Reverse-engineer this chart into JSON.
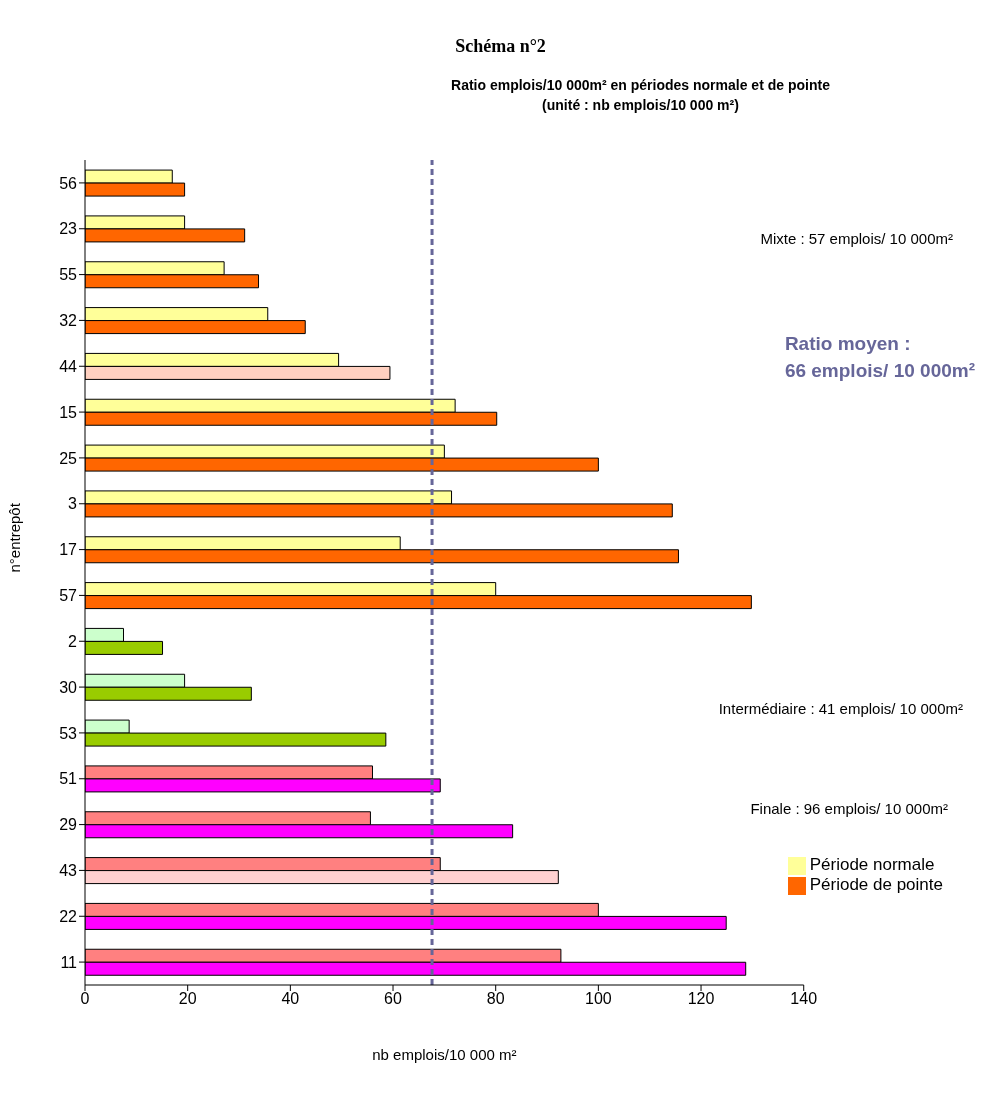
{
  "chart_data": {
    "type": "bar",
    "orientation": "horizontal",
    "title": "Schéma n°2",
    "subtitle": "Ratio emplois/10 000m² en périodes normale et de pointe\n(unité : nb emplois/10 000 m²)",
    "xlabel": "nb emplois/10 000 m²",
    "ylabel": "n°entrepôt",
    "categories": [
      "56",
      "23",
      "55",
      "32",
      "44",
      "15",
      "25",
      "3",
      "17",
      "57",
      "2",
      "30",
      "53",
      "51",
      "29",
      "43",
      "22",
      "11"
    ],
    "series": [
      {
        "name": "Période normale",
        "color": "#ffff99",
        "colors": [
          "#ffff99",
          "#ffff99",
          "#ffff99",
          "#ffff99",
          "#ffff99",
          "#ffff99",
          "#ffff99",
          "#ffff99",
          "#ffff99",
          "#ffff99",
          "#ccffcc",
          "#ccffcc",
          "#ccffcc",
          "#ff8080",
          "#ff8080",
          "#ff8080",
          "#ff8080",
          "#ff8080"
        ],
        "values": [
          17,
          19.4,
          27.1,
          35.6,
          49.4,
          72.1,
          70,
          71.4,
          61.4,
          80,
          7.5,
          19.4,
          8.6,
          56,
          55.6,
          69.2,
          100,
          92.7
        ]
      },
      {
        "name": "Période de pointe",
        "color": "#ff6600",
        "colors": [
          "#ff6600",
          "#ff6600",
          "#ff6600",
          "#ff6600",
          "#ffd0c0",
          "#ff6600",
          "#ff6600",
          "#ff6600",
          "#ff6600",
          "#ff6600",
          "#99cc00",
          "#99cc00",
          "#99cc00",
          "#ff00ff",
          "#ff00ff",
          "#ffd0d0",
          "#ff00ff",
          "#ff00ff"
        ],
        "values": [
          19.4,
          31.1,
          33.8,
          42.9,
          59.4,
          80.2,
          100,
          114.4,
          115.6,
          129.8,
          15.1,
          32.4,
          58.6,
          69.2,
          83.3,
          92.2,
          124.9,
          128.7
        ]
      }
    ],
    "xlim": [
      0,
      140
    ],
    "xticks": [
      0,
      20,
      40,
      60,
      80,
      100,
      120,
      140
    ],
    "legend": "bottom right",
    "ref_lines": [
      {
        "axis": "x",
        "value": 67.6,
        "color": "#666699",
        "line_style": "dashed"
      }
    ],
    "annotations": [
      "Mixte : 57 emplois/ 10 000m²",
      "Ratio moyen :\n66 emplois/ 10 000m²",
      "Intermédiaire : 41 emplois/ 10 000m²",
      "Finale : 96 emplois/ 10 000m²"
    ]
  }
}
